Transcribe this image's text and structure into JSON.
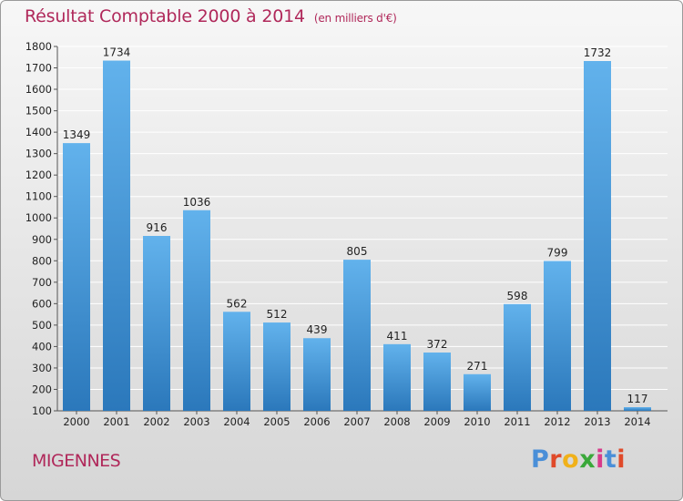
{
  "header": {
    "title": "Résultat Comptable 2000 à 2014",
    "unit": "(en milliers d'€)"
  },
  "footer": {
    "commune": "MIGENNES",
    "brand": "Proxiti",
    "brand_colors": [
      "#4a8fd8",
      "#e04a2a",
      "#f0b11a",
      "#3aa83a",
      "#d83a8a",
      "#4a8fd8",
      "#e04a2a"
    ]
  },
  "colors": {
    "title": "#b0285a",
    "bar_top": "#62b2ec",
    "bar_bottom": "#2b78bb",
    "grid": "#ffffff",
    "axis_text": "#222222"
  },
  "chart_data": {
    "type": "bar",
    "title": "Résultat Comptable 2000 à 2014",
    "subtitle": "(en milliers d'€)",
    "categories": [
      "2000",
      "2001",
      "2002",
      "2003",
      "2004",
      "2005",
      "2006",
      "2007",
      "2008",
      "2009",
      "2010",
      "2011",
      "2012",
      "2013",
      "2014"
    ],
    "values": [
      1349,
      1734,
      916,
      1036,
      562,
      512,
      439,
      805,
      411,
      372,
      271,
      598,
      799,
      1732,
      117
    ],
    "ylim": [
      100,
      1800
    ],
    "yticks": [
      100,
      200,
      300,
      400,
      500,
      600,
      700,
      800,
      900,
      1000,
      1100,
      1200,
      1300,
      1400,
      1500,
      1600,
      1700,
      1800
    ],
    "grid": "horizontal",
    "legend": "none",
    "data_labels": true
  }
}
